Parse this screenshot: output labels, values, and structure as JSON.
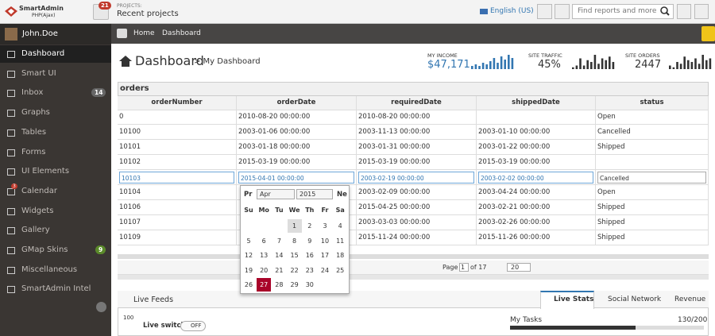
{
  "header": {
    "logo": "SmartAdmin",
    "logo_sub": "PHP(Ajax)",
    "notifications": "21",
    "projects_label": "PROJECTS:",
    "projects": "Recent projects",
    "language": "English (US)",
    "search_placeholder": "Find reports and more"
  },
  "sidebar": {
    "user": "John.Doe",
    "items": [
      {
        "label": "Dashboard"
      },
      {
        "label": "Smart UI"
      },
      {
        "label": "Inbox",
        "badge": "14"
      },
      {
        "label": "Graphs"
      },
      {
        "label": "Tables"
      },
      {
        "label": "Forms"
      },
      {
        "label": "UI Elements"
      },
      {
        "label": "Calendar",
        "badge": "3"
      },
      {
        "label": "Widgets"
      },
      {
        "label": "Gallery"
      },
      {
        "label": "GMap Skins",
        "badge": "9"
      },
      {
        "label": "Miscellaneous"
      },
      {
        "label": "SmartAdmin Intel"
      }
    ]
  },
  "breadcrumb": [
    "Home",
    "Dashboard"
  ],
  "page_title": {
    "title": "Dashboard",
    "subtitle": "> My Dashboard"
  },
  "stats": [
    {
      "label": "MY INCOME",
      "value": "$47,171",
      "sparkline": [
        2,
        3,
        2,
        4,
        3,
        5,
        7,
        4,
        8,
        6,
        9,
        7
      ]
    },
    {
      "label": "SITE TRAFFIC",
      "value": "45%",
      "sparkline": [
        1,
        2,
        6,
        2,
        5,
        4,
        8,
        3,
        6,
        5,
        7,
        4
      ]
    },
    {
      "label": "SITE ORDERS",
      "value": "2447",
      "sparkline": [
        2,
        1,
        4,
        3,
        7,
        5,
        4,
        6,
        3,
        8,
        5,
        6
      ]
    }
  ],
  "table": {
    "title": "orders",
    "columns": [
      "orderNumber",
      "orderDate",
      "requiredDate",
      "shippedDate",
      "status"
    ],
    "rows": [
      [
        "0",
        "2010-08-20 00:00:00",
        "2010-08-20 00:00:00",
        null,
        "Open"
      ],
      [
        "10100",
        "2003-01-06 00:00:00",
        "2003-11-13 00:00:00",
        "2003-01-10 00:00:00",
        "Cancelled"
      ],
      [
        "10101",
        "2003-01-18 00:00:00",
        "2003-01-31 00:00:00",
        "2003-01-22 00:00:00",
        "Shipped"
      ],
      [
        "10102",
        "2015-03-19 00:00:00",
        "2015-03-19 00:00:00",
        "2015-03-19 00:00:00",
        null
      ]
    ],
    "edit_row": [
      "10103",
      "2015-04-01 00:00:00",
      "2003-02-19 00:00:00",
      "2003-02-02 00:00:00",
      "Cancelled"
    ],
    "rows_below": [
      [
        "10104",
        null,
        "2003-02-09 00:00:00",
        "2003-04-24 00:00:00",
        "Open"
      ],
      [
        "10106",
        null,
        "2015-04-25 00:00:00",
        "2003-02-21 00:00:00",
        "Shipped"
      ],
      [
        "10107",
        null,
        "2003-03-03 00:00:00",
        "2003-02-26 00:00:00",
        "Shipped"
      ],
      [
        "10109",
        null,
        "2015-11-24 00:00:00",
        "2015-11-26 00:00:00",
        "Shipped"
      ]
    ],
    "pager": {
      "page_label": "Page",
      "page": "1",
      "of": "of 17",
      "size": "20"
    }
  },
  "datepicker": {
    "prev": "Pr",
    "month": "Apr",
    "year": "2015",
    "next": "Ne",
    "selected": "27",
    "weekdays": [
      "Su",
      "Mo",
      "Tu",
      "We",
      "Th",
      "Fr",
      "Sa"
    ],
    "weeks": [
      [
        null,
        null,
        null,
        "1",
        "2",
        "3",
        "4"
      ],
      [
        "5",
        "6",
        "7",
        "8",
        "9",
        "10",
        "11"
      ],
      [
        "12",
        "13",
        "14",
        "15",
        "16",
        "17",
        "18"
      ],
      [
        "19",
        "20",
        "21",
        "22",
        "23",
        "24",
        "25"
      ],
      [
        "26",
        "27",
        "28",
        "29",
        "30",
        null,
        null
      ]
    ]
  },
  "live_feeds": {
    "title": "Live Feeds",
    "tabs": [
      "Live Stats",
      "Social Network",
      "Revenue"
    ],
    "axis_label": "100",
    "switch_label": "Live switch",
    "switch_state": "OFF",
    "task_label": "My Tasks",
    "task_value": "130/200"
  }
}
